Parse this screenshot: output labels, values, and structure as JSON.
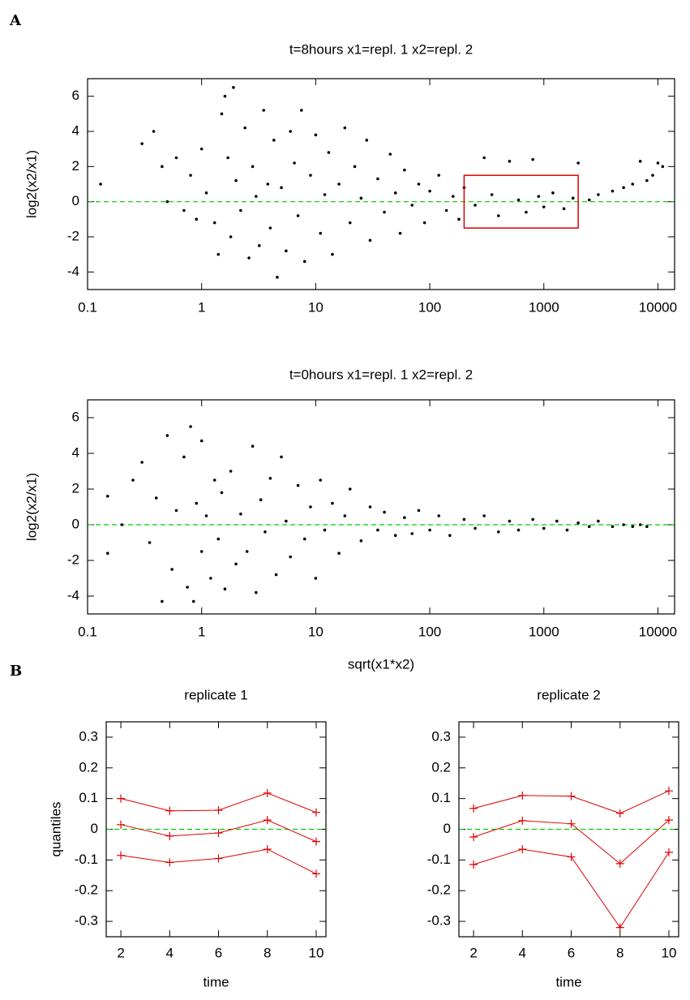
{
  "panel_labels": [
    "A",
    "B"
  ],
  "chart_data": [
    {
      "type": "scatter",
      "title": "t=8hours x1=repl. 1 x2=repl. 2",
      "y_label": "log2(x2/x1)",
      "x_scale": "log",
      "xlim": [
        0.1,
        14000
      ],
      "ylim": [
        -5,
        7
      ],
      "xticks": [
        0.1,
        1,
        10,
        100,
        1000,
        10000
      ],
      "yticks": [
        -4,
        -2,
        0,
        2,
        4,
        6
      ],
      "color": "#000000",
      "reference_line": {
        "y": 0,
        "color": "#00cc00"
      },
      "highlight_box": {
        "x": [
          200,
          2000
        ],
        "y": [
          -1.5,
          1.5
        ],
        "color": "#e00000"
      },
      "x": [
        0.13,
        0.3,
        0.38,
        0.45,
        0.5,
        0.6,
        0.7,
        0.8,
        0.9,
        1,
        1.1,
        1.3,
        1.4,
        1.5,
        1.6,
        1.7,
        1.8,
        1.9,
        2,
        2.2,
        2.4,
        2.6,
        2.8,
        3,
        3.2,
        3.5,
        3.8,
        4,
        4.3,
        4.6,
        5,
        5.5,
        6,
        6.5,
        7,
        7.5,
        8,
        9,
        10,
        11,
        12,
        13,
        14,
        16,
        18,
        20,
        22,
        25,
        28,
        30,
        35,
        40,
        45,
        50,
        55,
        60,
        70,
        80,
        90,
        100,
        120,
        140,
        160,
        180,
        200,
        250,
        300,
        350,
        400,
        500,
        600,
        700,
        800,
        900,
        1000,
        1200,
        1500,
        1800,
        2000,
        2500,
        3000,
        4000,
        5000,
        6000,
        7000,
        8000,
        9000,
        10000,
        11000
      ],
      "y": [
        1.0,
        3.3,
        4.0,
        2.0,
        0.0,
        2.5,
        -0.5,
        1.5,
        -1.0,
        3.0,
        0.5,
        -1.2,
        -3.0,
        5.0,
        6.0,
        2.5,
        -2.0,
        6.5,
        1.2,
        -0.5,
        4.2,
        -3.2,
        2.0,
        0.3,
        -2.5,
        5.2,
        1.0,
        -1.5,
        3.5,
        -4.3,
        0.8,
        -2.8,
        4.0,
        2.2,
        -0.8,
        5.2,
        -3.4,
        1.5,
        3.8,
        -1.8,
        0.4,
        2.8,
        -3.0,
        1.0,
        4.2,
        -1.2,
        2.0,
        0.2,
        3.5,
        -2.2,
        1.3,
        -0.6,
        2.7,
        0.5,
        -1.8,
        1.8,
        -0.2,
        1.0,
        -1.2,
        0.6,
        1.5,
        -0.5,
        0.3,
        -1.0,
        0.8,
        -0.2,
        2.5,
        0.4,
        -0.8,
        2.3,
        0.1,
        -0.6,
        2.4,
        0.3,
        -0.3,
        0.5,
        -0.4,
        0.2,
        2.2,
        0.1,
        0.4,
        0.6,
        0.8,
        1.0,
        2.3,
        1.2,
        1.5,
        2.2,
        2.0
      ]
    },
    {
      "type": "scatter",
      "title": "t=0hours x1=repl. 1 x2=repl. 2",
      "y_label": "log2(x2/x1)",
      "x_label": "sqrt(x1*x2)",
      "x_scale": "log",
      "xlim": [
        0.1,
        14000
      ],
      "ylim": [
        -5,
        7
      ],
      "xticks": [
        0.1,
        1,
        10,
        100,
        1000,
        10000
      ],
      "yticks": [
        -4,
        -2,
        0,
        2,
        4,
        6
      ],
      "color": "#000000",
      "reference_line": {
        "y": 0,
        "color": "#00cc00"
      },
      "x": [
        0.15,
        0.15,
        0.2,
        0.25,
        0.3,
        0.35,
        0.4,
        0.45,
        0.5,
        0.55,
        0.6,
        0.7,
        0.75,
        0.8,
        0.85,
        0.9,
        1,
        1,
        1.1,
        1.2,
        1.3,
        1.4,
        1.5,
        1.6,
        1.8,
        2,
        2.2,
        2.5,
        2.8,
        3,
        3.3,
        3.6,
        4,
        4.5,
        5,
        5.5,
        6,
        7,
        8,
        9,
        10,
        11,
        12,
        14,
        16,
        18,
        20,
        25,
        30,
        35,
        40,
        50,
        60,
        70,
        80,
        100,
        120,
        150,
        200,
        250,
        300,
        400,
        500,
        600,
        800,
        1000,
        1300,
        1600,
        2000,
        2500,
        3000,
        4000,
        5000,
        6000,
        7000,
        8000
      ],
      "y": [
        1.6,
        -1.6,
        0.0,
        2.5,
        3.5,
        -1.0,
        1.5,
        -4.3,
        5.0,
        -2.5,
        0.8,
        3.8,
        -3.5,
        5.5,
        -4.3,
        1.2,
        4.7,
        -1.5,
        0.5,
        -3.0,
        2.5,
        -0.8,
        1.8,
        -3.6,
        3.0,
        -2.2,
        0.6,
        -1.5,
        4.4,
        -3.8,
        1.4,
        -0.4,
        2.6,
        -2.8,
        3.8,
        0.2,
        -1.8,
        2.2,
        -0.8,
        1.0,
        -3.0,
        2.5,
        -0.3,
        1.2,
        -1.6,
        0.5,
        2.0,
        -0.9,
        1.0,
        -0.3,
        0.7,
        -0.6,
        0.4,
        -0.5,
        0.8,
        -0.3,
        0.5,
        -0.6,
        0.3,
        -0.2,
        0.5,
        -0.4,
        0.2,
        -0.3,
        0.3,
        -0.2,
        0.2,
        -0.3,
        0.1,
        -0.1,
        0.2,
        -0.1,
        0.0,
        -0.1,
        0.0,
        -0.1
      ]
    },
    {
      "type": "line",
      "title": "replicate 1",
      "y_label": "quantiles",
      "x_label": "time",
      "xlim": [
        1.4,
        10.4
      ],
      "ylim": [
        -0.35,
        0.35
      ],
      "xticks": [
        2,
        4,
        6,
        8,
        10
      ],
      "yticks": [
        -0.3,
        -0.2,
        -0.1,
        0,
        0.1,
        0.2,
        0.3
      ],
      "reference_line": {
        "y": 0,
        "color": "#00cc00"
      },
      "x": [
        2,
        4,
        6,
        8,
        10
      ],
      "series": [
        {
          "color": "#e00000",
          "values": [
            0.1,
            0.06,
            0.062,
            0.118,
            0.055
          ]
        },
        {
          "color": "#e00000",
          "values": [
            0.015,
            -0.022,
            -0.012,
            0.03,
            -0.04
          ]
        },
        {
          "color": "#e00000",
          "values": [
            -0.085,
            -0.108,
            -0.095,
            -0.065,
            -0.145
          ]
        }
      ]
    },
    {
      "type": "line",
      "title": "replicate 2",
      "x_label": "time",
      "xlim": [
        1.4,
        10.4
      ],
      "ylim": [
        -0.35,
        0.35
      ],
      "xticks": [
        2,
        4,
        6,
        8,
        10
      ],
      "yticks": [
        -0.3,
        -0.2,
        -0.1,
        0,
        0.1,
        0.2,
        0.3
      ],
      "reference_line": {
        "y": 0,
        "color": "#00cc00"
      },
      "x": [
        2,
        4,
        6,
        8,
        10
      ],
      "series": [
        {
          "color": "#e00000",
          "values": [
            0.068,
            0.11,
            0.108,
            0.052,
            0.125
          ]
        },
        {
          "color": "#e00000",
          "values": [
            -0.025,
            0.028,
            0.018,
            -0.112,
            0.03
          ]
        },
        {
          "color": "#e00000",
          "values": [
            -0.115,
            -0.065,
            -0.09,
            -0.32,
            -0.075
          ]
        }
      ]
    }
  ]
}
